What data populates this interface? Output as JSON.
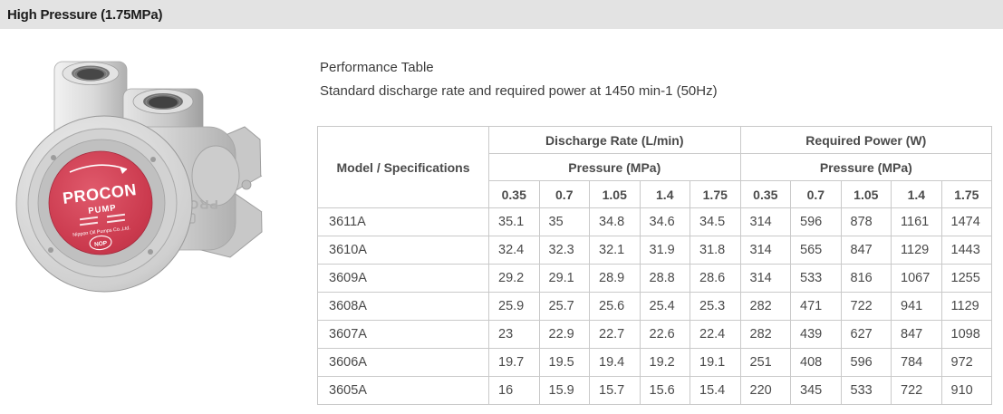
{
  "header": {
    "title": "High Pressure (1.75MPa)"
  },
  "intro": {
    "caption": "Performance Table",
    "subcaption": "Standard discharge rate and required power at 1450 min-1 (50Hz)"
  },
  "pump": {
    "brand": "PROCON",
    "brand_sub": "PUMP",
    "company": "Nippon Oil Pumps Co.,Ltd.",
    "badge": "NOP",
    "embossed": "PROCON"
  },
  "table": {
    "model_header": "Model / Specifications",
    "discharge_group": "Discharge Rate (L/min)",
    "power_group": "Required Power (W)",
    "pressure_subheader": "Pressure (MPa)",
    "pressures": [
      "0.35",
      "0.7",
      "1.05",
      "1.4",
      "1.75"
    ],
    "rows": [
      {
        "model": "3611A",
        "discharge": [
          "35.1",
          "35",
          "34.8",
          "34.6",
          "34.5"
        ],
        "power": [
          "314",
          "596",
          "878",
          "1161",
          "1474"
        ]
      },
      {
        "model": "3610A",
        "discharge": [
          "32.4",
          "32.3",
          "32.1",
          "31.9",
          "31.8"
        ],
        "power": [
          "314",
          "565",
          "847",
          "1129",
          "1443"
        ]
      },
      {
        "model": "3609A",
        "discharge": [
          "29.2",
          "29.1",
          "28.9",
          "28.8",
          "28.6"
        ],
        "power": [
          "314",
          "533",
          "816",
          "1067",
          "1255"
        ]
      },
      {
        "model": "3608A",
        "discharge": [
          "25.9",
          "25.7",
          "25.6",
          "25.4",
          "25.3"
        ],
        "power": [
          "282",
          "471",
          "722",
          "941",
          "1129"
        ]
      },
      {
        "model": "3607A",
        "discharge": [
          "23",
          "22.9",
          "22.7",
          "22.6",
          "22.4"
        ],
        "power": [
          "282",
          "439",
          "627",
          "847",
          "1098"
        ]
      },
      {
        "model": "3606A",
        "discharge": [
          "19.7",
          "19.5",
          "19.4",
          "19.2",
          "19.1"
        ],
        "power": [
          "251",
          "408",
          "596",
          "784",
          "972"
        ]
      },
      {
        "model": "3605A",
        "discharge": [
          "16",
          "15.9",
          "15.7",
          "15.6",
          "15.4"
        ],
        "power": [
          "220",
          "345",
          "533",
          "722",
          "910"
        ]
      }
    ]
  },
  "colors": {
    "header_bar_bg": "#e3e3e3",
    "title_text": "#1b1b1b",
    "body_text": "#4a4a4a",
    "table_border": "#c9c9c9",
    "label_red": "#cb3a4e",
    "metal_light": "#f0f0f0",
    "metal_dark": "#b5b5b5"
  }
}
